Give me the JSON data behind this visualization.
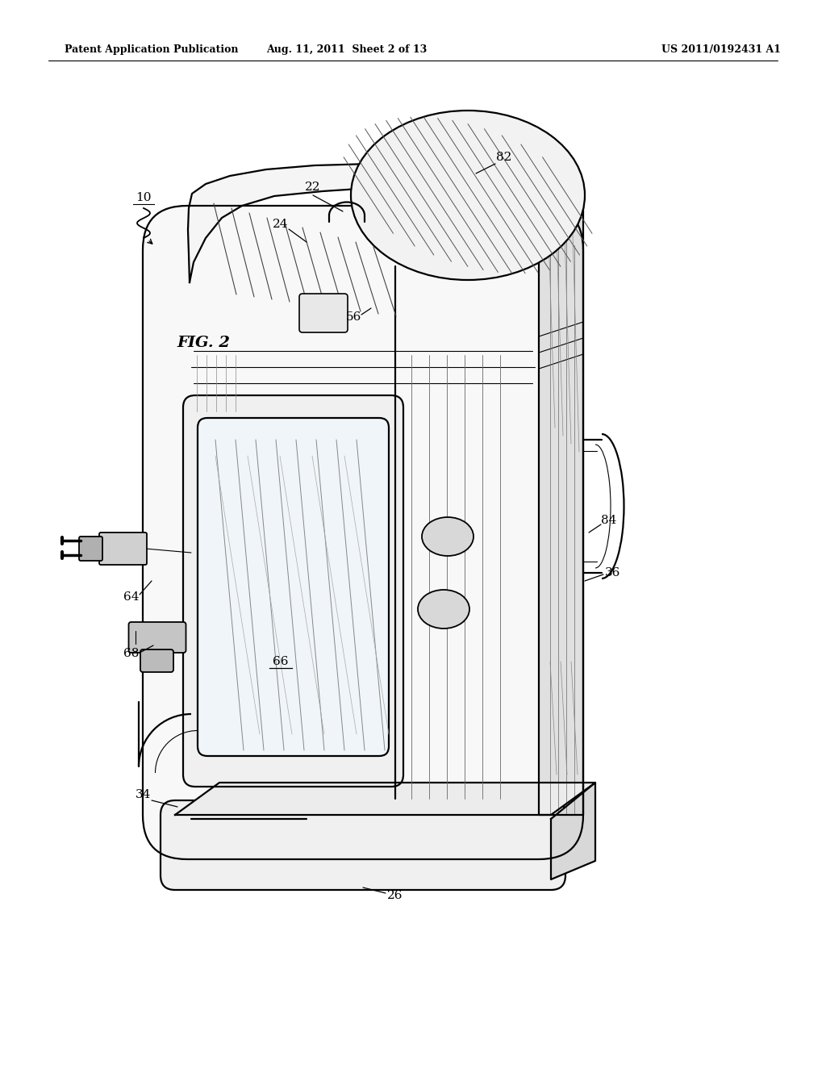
{
  "background_color": "#ffffff",
  "header_left": "Patent Application Publication",
  "header_center": "Aug. 11, 2011  Sheet 2 of 13",
  "header_right": "US 2011/0192431 A1",
  "figure_label": "FIG. 2",
  "line_color": "#000000",
  "lw_main": 1.6,
  "lw_thin": 0.8,
  "lw_thick": 2.0
}
